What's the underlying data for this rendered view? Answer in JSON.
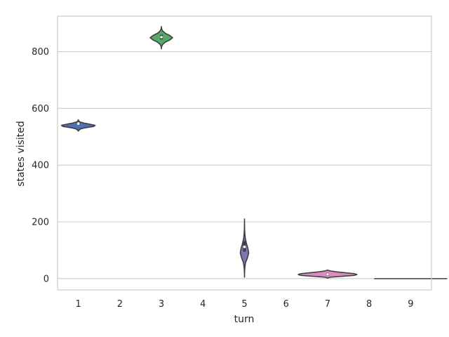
{
  "chart_data": {
    "type": "violin",
    "title": "",
    "xlabel": "turn",
    "ylabel": "states visited",
    "categories": [
      "1",
      "2",
      "3",
      "4",
      "5",
      "6",
      "7",
      "8",
      "9"
    ],
    "ylim": [
      -40,
      925
    ],
    "yticks": [
      0,
      200,
      400,
      600,
      800
    ],
    "grid": "horizontal",
    "violins": [
      {
        "category": "1",
        "color": "#4c72b0",
        "min": 520,
        "max": 560,
        "q1": 542,
        "median": 546,
        "q3": 549,
        "density": [
          0.05,
          0.15,
          0.45,
          0.9,
          1.0,
          0.7,
          0.35,
          0.1,
          0.02
        ]
      },
      {
        "category": "3",
        "color": "#55a868",
        "min": 810,
        "max": 888,
        "q1": 843,
        "median": 851,
        "q3": 859,
        "density": [
          0.02,
          0.12,
          0.35,
          0.75,
          1.0,
          0.75,
          0.35,
          0.12,
          0.02
        ]
      },
      {
        "category": "5",
        "color": "#8172b2",
        "min": 5,
        "max": 210,
        "q1": 95,
        "median": 112,
        "q3": 132,
        "density": [
          0.02,
          0.08,
          0.25,
          0.7,
          1.0,
          0.8,
          0.45,
          0.2,
          0.08,
          0.03,
          0.01
        ]
      },
      {
        "category": "7",
        "color": "#da8bc3",
        "min": 2,
        "max": 30,
        "q1": 10,
        "median": 15,
        "q3": 20,
        "density": [
          0.1,
          0.5,
          0.9,
          1.0,
          0.9,
          0.6,
          0.3,
          0.1
        ]
      },
      {
        "category": "9",
        "color": "#8c8c8c",
        "min": 0,
        "max": 0,
        "q1": 0,
        "median": 0,
        "q3": 0,
        "density": [
          1.0
        ]
      }
    ],
    "maxWidthPx": [
      24,
      16,
      6,
      42,
      52
    ]
  }
}
